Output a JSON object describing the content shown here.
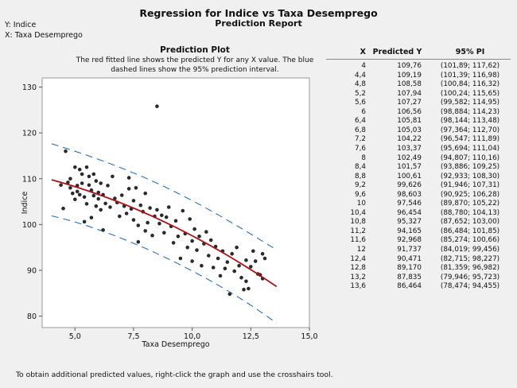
{
  "report": {
    "title": "Regression for Indice vs Taxa Desemprego",
    "subtitle": "Prediction Report",
    "y_note": "Y: Indice",
    "x_note": "X: Taxa Desemprego"
  },
  "plot": {
    "title": "Prediction Plot",
    "desc_line1": "The red fitted line shows the predicted Y for any X value. The blue",
    "desc_line2": "dashed lines show the 95% prediction interval."
  },
  "table": {
    "headers": [
      "X",
      "Predicted Y",
      "95% PI"
    ],
    "rows": [
      [
        "4",
        "109,76",
        "(101,89; 117,62)"
      ],
      [
        "4,4",
        "109,19",
        "(101,39; 116,98)"
      ],
      [
        "4,8",
        "108,58",
        "(100,84; 116,32)"
      ],
      [
        "5,2",
        "107,94",
        "(100,24; 115,65)"
      ],
      [
        "5,6",
        "107,27",
        "(99,582; 114,95)"
      ],
      [
        "6",
        "106,56",
        "(98,884; 114,23)"
      ],
      [
        "6,4",
        "105,81",
        "(98,144; 113,48)"
      ],
      [
        "6,8",
        "105,03",
        "(97,364; 112,70)"
      ],
      [
        "7,2",
        "104,22",
        "(96,547; 111,89)"
      ],
      [
        "7,6",
        "103,37",
        "(95,694; 111,04)"
      ],
      [
        "8",
        "102,49",
        "(94,807; 110,16)"
      ],
      [
        "8,4",
        "101,57",
        "(93,886; 109,25)"
      ],
      [
        "8,8",
        "100,61",
        "(92,933; 108,30)"
      ],
      [
        "9,2",
        "99,626",
        "(91,946; 107,31)"
      ],
      [
        "9,6",
        "98,603",
        "(90,925; 106,28)"
      ],
      [
        "10",
        "97,546",
        "(89,870; 105,22)"
      ],
      [
        "10,4",
        "96,454",
        "(88,780; 104,13)"
      ],
      [
        "10,8",
        "95,327",
        "(87,652; 103,00)"
      ],
      [
        "11,2",
        "94,165",
        "(86,484; 101,85)"
      ],
      [
        "11,6",
        "92,968",
        "(85,274; 100,66)"
      ],
      [
        "12",
        "91,737",
        "(84,019; 99,456)"
      ],
      [
        "12,4",
        "90,471",
        "(82,715; 98,227)"
      ],
      [
        "12,8",
        "89,170",
        "(81,359; 96,982)"
      ],
      [
        "13,2",
        "87,835",
        "(79,946; 95,723)"
      ],
      [
        "13,6",
        "86,464",
        "(78,474; 94,455)"
      ]
    ]
  },
  "footer": "To obtain additional predicted values, right-click the graph and use the crosshairs tool.",
  "colors": {
    "fit": "#b01016",
    "pi": "#2a6fb8",
    "point": "#2a2a2a"
  },
  "chart_data": {
    "type": "scatter",
    "xlabel": "Taxa Desemprego",
    "ylabel": "Indice",
    "xlim": [
      3.6,
      15
    ],
    "ylim": [
      77.5,
      132
    ],
    "x_ticks": [
      5,
      7.5,
      10,
      12.5,
      15
    ],
    "x_tick_labels": [
      "5,0",
      "7,5",
      "10,0",
      "12,5",
      "15,0"
    ],
    "y_ticks": [
      80,
      90,
      100,
      110,
      120,
      130
    ],
    "y_tick_labels": [
      "80",
      "90",
      "100",
      "110",
      "120",
      "130"
    ],
    "grid": false,
    "fit": {
      "x": [
        4,
        4.4,
        4.8,
        5.2,
        5.6,
        6,
        6.4,
        6.8,
        7.2,
        7.6,
        8,
        8.4,
        8.8,
        9.2,
        9.6,
        10,
        10.4,
        10.8,
        11.2,
        11.6,
        12,
        12.4,
        12.8,
        13.2,
        13.6
      ],
      "y": [
        109.76,
        109.19,
        108.58,
        107.94,
        107.27,
        106.56,
        105.81,
        105.03,
        104.22,
        103.37,
        102.49,
        101.57,
        100.61,
        99.626,
        98.603,
        97.546,
        96.454,
        95.327,
        94.165,
        92.968,
        91.737,
        90.471,
        89.17,
        87.835,
        86.464
      ],
      "pi_lower": [
        101.89,
        101.39,
        100.84,
        100.24,
        99.582,
        98.884,
        98.144,
        97.364,
        96.547,
        95.694,
        94.807,
        93.886,
        92.933,
        91.946,
        90.925,
        89.87,
        88.78,
        87.652,
        86.484,
        85.274,
        84.019,
        82.715,
        81.359,
        79.946,
        78.474
      ],
      "pi_upper": [
        117.62,
        116.98,
        116.32,
        115.65,
        114.95,
        114.23,
        113.48,
        112.7,
        111.89,
        111.04,
        110.16,
        109.25,
        108.3,
        107.31,
        106.28,
        105.22,
        104.13,
        103.0,
        101.85,
        100.66,
        99.456,
        98.227,
        96.982,
        95.723,
        94.455
      ]
    },
    "points": [
      [
        4.4,
        108.6
      ],
      [
        4.5,
        103.5
      ],
      [
        4.6,
        116.0
      ],
      [
        4.7,
        109.2
      ],
      [
        4.8,
        108.0
      ],
      [
        4.8,
        110.0
      ],
      [
        4.9,
        106.8
      ],
      [
        5.0,
        112.5
      ],
      [
        5.0,
        105.5
      ],
      [
        5.1,
        107.2
      ],
      [
        5.1,
        108.5
      ],
      [
        5.2,
        112.0
      ],
      [
        5.2,
        106.5
      ],
      [
        5.3,
        111.0
      ],
      [
        5.3,
        109.0
      ],
      [
        5.4,
        106.0
      ],
      [
        5.4,
        100.6
      ],
      [
        5.5,
        112.5
      ],
      [
        5.5,
        104.5
      ],
      [
        5.6,
        110.5
      ],
      [
        5.6,
        108.6
      ],
      [
        5.7,
        107.5
      ],
      [
        5.7,
        101.5
      ],
      [
        5.8,
        111.0
      ],
      [
        5.8,
        106.3
      ],
      [
        5.9,
        109.5
      ],
      [
        5.9,
        104.0
      ],
      [
        6.0,
        107.0
      ],
      [
        6.0,
        105.6
      ],
      [
        6.1,
        103.2
      ],
      [
        6.1,
        109.0
      ],
      [
        6.2,
        106.5
      ],
      [
        6.2,
        98.8
      ],
      [
        6.3,
        104.6
      ],
      [
        6.4,
        108.5
      ],
      [
        6.5,
        103.8
      ],
      [
        6.6,
        110.5
      ],
      [
        6.7,
        105.7
      ],
      [
        6.8,
        104.8
      ],
      [
        6.9,
        101.8
      ],
      [
        7.0,
        106.4
      ],
      [
        7.1,
        104.0
      ],
      [
        7.2,
        102.4
      ],
      [
        7.3,
        107.8
      ],
      [
        7.3,
        110.2
      ],
      [
        7.4,
        103.4
      ],
      [
        7.5,
        105.2
      ],
      [
        7.5,
        101.0
      ],
      [
        7.6,
        108.0
      ],
      [
        7.7,
        99.8
      ],
      [
        7.7,
        96.2
      ],
      [
        7.8,
        104.2
      ],
      [
        7.9,
        102.8
      ],
      [
        8.0,
        106.8
      ],
      [
        8.0,
        98.6
      ],
      [
        8.1,
        100.4
      ],
      [
        8.2,
        103.6
      ],
      [
        8.3,
        97.6
      ],
      [
        8.4,
        101.8
      ],
      [
        8.5,
        125.8
      ],
      [
        8.5,
        103.2
      ],
      [
        8.6,
        100.2
      ],
      [
        8.7,
        102.0
      ],
      [
        8.8,
        98.2
      ],
      [
        8.9,
        101.6
      ],
      [
        9.0,
        103.8
      ],
      [
        9.1,
        99.6
      ],
      [
        9.2,
        96.0
      ],
      [
        9.3,
        100.8
      ],
      [
        9.4,
        97.4
      ],
      [
        9.5,
        92.6
      ],
      [
        9.6,
        103.0
      ],
      [
        9.7,
        98.0
      ],
      [
        9.8,
        95.0
      ],
      [
        9.9,
        101.2
      ],
      [
        10.0,
        96.4
      ],
      [
        10.0,
        92.0
      ],
      [
        10.1,
        99.0
      ],
      [
        10.2,
        94.4
      ],
      [
        10.3,
        97.4
      ],
      [
        10.4,
        91.0
      ],
      [
        10.5,
        95.8
      ],
      [
        10.6,
        98.4
      ],
      [
        10.7,
        93.2
      ],
      [
        10.8,
        96.6
      ],
      [
        10.9,
        90.6
      ],
      [
        11.0,
        95.2
      ],
      [
        11.1,
        92.6
      ],
      [
        11.2,
        88.8
      ],
      [
        11.3,
        94.2
      ],
      [
        11.4,
        90.4
      ],
      [
        11.5,
        91.8
      ],
      [
        11.6,
        84.8
      ],
      [
        11.7,
        93.6
      ],
      [
        11.8,
        89.8
      ],
      [
        11.9,
        95.0
      ],
      [
        12.0,
        91.0
      ],
      [
        12.1,
        88.4
      ],
      [
        12.2,
        85.8
      ],
      [
        12.3,
        92.2
      ],
      [
        12.4,
        86.0
      ],
      [
        12.5,
        90.8
      ],
      [
        12.6,
        94.2
      ],
      [
        12.7,
        92.0
      ],
      [
        12.8,
        89.2
      ],
      [
        12.9,
        89.0
      ],
      [
        13.0,
        88.2
      ],
      [
        13.1,
        92.6
      ],
      [
        13.0,
        93.6
      ],
      [
        12.3,
        87.6
      ]
    ]
  }
}
